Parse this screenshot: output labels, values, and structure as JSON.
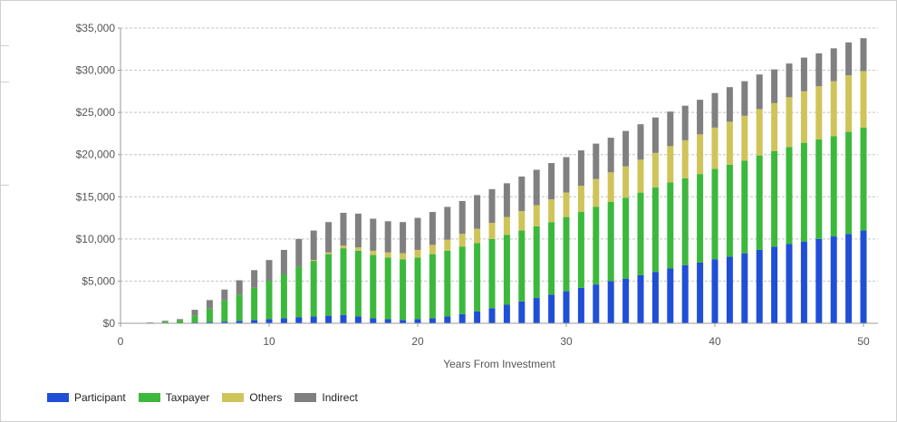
{
  "chart_data": {
    "type": "bar",
    "stacked": true,
    "xlabel": "Years From Investment",
    "ylabel": "",
    "xlim": [
      0,
      50
    ],
    "ylim": [
      0,
      35000
    ],
    "x_ticks": [
      0,
      10,
      20,
      30,
      40,
      50
    ],
    "y_ticks": [
      "$0",
      "$5,000",
      "$10,000",
      "$15,000",
      "$20,000",
      "$25,000",
      "$30,000",
      "$35,000"
    ],
    "grid": true,
    "legend_position": "bottom-left",
    "x": [
      1,
      2,
      3,
      4,
      5,
      6,
      7,
      8,
      9,
      10,
      11,
      12,
      13,
      14,
      15,
      16,
      17,
      18,
      19,
      20,
      21,
      22,
      23,
      24,
      25,
      26,
      27,
      28,
      29,
      30,
      31,
      32,
      33,
      34,
      35,
      36,
      37,
      38,
      39,
      40,
      41,
      42,
      43,
      44,
      45,
      46,
      47,
      48,
      49,
      50
    ],
    "series": [
      {
        "name": "Participant",
        "color": "#1f4fd6",
        "values": [
          0,
          0,
          0,
          50,
          100,
          150,
          200,
          300,
          400,
          500,
          600,
          700,
          800,
          900,
          1000,
          800,
          600,
          500,
          400,
          500,
          600,
          800,
          1100,
          1400,
          1800,
          2200,
          2600,
          3000,
          3400,
          3800,
          4200,
          4600,
          5000,
          5300,
          5700,
          6100,
          6500,
          6900,
          7200,
          7600,
          7900,
          8300,
          8700,
          9100,
          9400,
          9700,
          10000,
          10300,
          10600,
          11000
        ]
      },
      {
        "name": "Taxpayer",
        "color": "#3cb93c",
        "values": [
          0,
          50,
          200,
          300,
          800,
          1600,
          2500,
          3100,
          3800,
          4500,
          5200,
          6000,
          6600,
          7300,
          7900,
          7800,
          7500,
          7300,
          7200,
          7300,
          7600,
          7800,
          8000,
          8100,
          8200,
          8300,
          8400,
          8500,
          8600,
          8800,
          9000,
          9200,
          9400,
          9600,
          9800,
          10000,
          10200,
          10300,
          10500,
          10700,
          10900,
          11000,
          11200,
          11300,
          11500,
          11700,
          11800,
          11900,
          12100,
          12200
        ]
      },
      {
        "name": "Others",
        "color": "#cfc45a",
        "values": [
          0,
          0,
          0,
          0,
          0,
          0,
          0,
          0,
          0,
          0,
          0,
          0,
          100,
          200,
          300,
          400,
          500,
          600,
          700,
          900,
          1100,
          1300,
          1500,
          1700,
          1900,
          2100,
          2300,
          2500,
          2700,
          2900,
          3100,
          3300,
          3500,
          3700,
          3900,
          4100,
          4300,
          4500,
          4700,
          4900,
          5100,
          5300,
          5500,
          5700,
          5900,
          6100,
          6300,
          6500,
          6700,
          6700
        ]
      },
      {
        "name": "Indirect",
        "color": "#808080",
        "values": [
          0,
          50,
          100,
          150,
          700,
          1000,
          1300,
          1700,
          2100,
          2500,
          2900,
          3300,
          3500,
          3600,
          3900,
          4000,
          3800,
          3700,
          3700,
          3800,
          3900,
          3900,
          3900,
          4000,
          4000,
          4000,
          4100,
          4200,
          4300,
          4200,
          4200,
          4200,
          4100,
          4200,
          4200,
          4200,
          4100,
          4100,
          4100,
          4100,
          4100,
          4100,
          4100,
          4000,
          4000,
          4000,
          3900,
          3900,
          3900,
          3900
        ]
      }
    ]
  }
}
